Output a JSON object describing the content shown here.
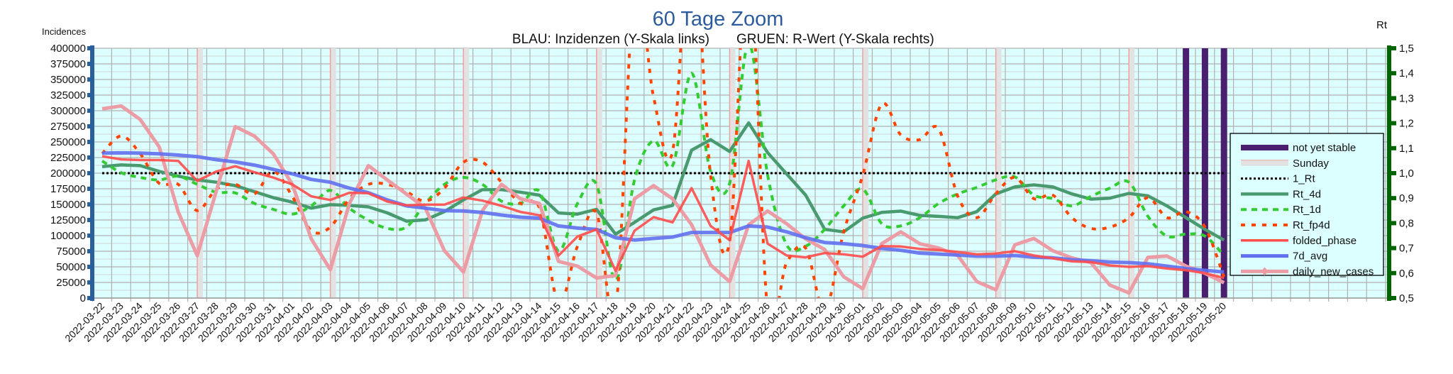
{
  "chart_data": {
    "type": "line",
    "title": "60 Tage Zoom",
    "subtitle_left": "BLAU: Inzidenzen (Y-Skala links)",
    "subtitle_right": "GRUEN: R-Wert (Y-Skala rechts)",
    "ylabel_left": "Incidences",
    "ylabel_right": "Rt",
    "ylim_left": [
      0,
      400000
    ],
    "ylim_right": [
      0.5,
      1.5
    ],
    "yticks_left": [
      "0",
      "25000",
      "50000",
      "75000",
      "100000",
      "125000",
      "150000",
      "175000",
      "200000",
      "225000",
      "250000",
      "275000",
      "300000",
      "325000",
      "350000",
      "375000",
      "400000"
    ],
    "yticks_right": [
      "0,5",
      "0,6",
      "0,7",
      "0,8",
      "0,9",
      "1,0",
      "1,1",
      "1,2",
      "1,3",
      "1,4",
      "1,5"
    ],
    "grid": true,
    "legend_position": "right",
    "x": [
      "2022-03-22",
      "2022-03-23",
      "2022-03-24",
      "2022-03-25",
      "2022-03-26",
      "2022-03-27",
      "2022-03-28",
      "2022-03-29",
      "2022-03-30",
      "2022-03-31",
      "2022-04-01",
      "2022-04-02",
      "2022-04-03",
      "2022-04-04",
      "2022-04-05",
      "2022-04-06",
      "2022-04-07",
      "2022-04-08",
      "2022-04-09",
      "2022-04-10",
      "2022-04-11",
      "2022-04-12",
      "2022-04-13",
      "2022-04-14",
      "2022-04-15",
      "2022-04-16",
      "2022-04-17",
      "2022-04-18",
      "2022-04-19",
      "2022-04-20",
      "2022-04-21",
      "2022-04-22",
      "2022-04-23",
      "2022-04-24",
      "2022-04-25",
      "2022-04-26",
      "2022-04-27",
      "2022-04-28",
      "2022-04-29",
      "2022-04-30",
      "2022-05-01",
      "2022-05-02",
      "2022-05-03",
      "2022-05-04",
      "2022-05-05",
      "2022-05-06",
      "2022-05-07",
      "2022-05-08",
      "2022-05-09",
      "2022-05-10",
      "2022-05-11",
      "2022-05-12",
      "2022-05-13",
      "2022-05-14",
      "2022-05-15",
      "2022-05-16",
      "2022-05-17",
      "2022-05-18",
      "2022-05-19",
      "2022-05-20"
    ],
    "sundays": [
      "2022-03-27",
      "2022-04-03",
      "2022-04-10",
      "2022-04-17",
      "2022-04-24",
      "2022-05-01",
      "2022-05-08",
      "2022-05-15"
    ],
    "not_yet_stable": [
      "2022-05-18",
      "2022-05-19",
      "2022-05-20"
    ],
    "series": [
      {
        "name": "not yet stable",
        "axis": "none",
        "color": "#4b1f6f",
        "style": "bar"
      },
      {
        "name": "Sunday",
        "axis": "none",
        "color": "#e2e2e2",
        "edge": "#f0a0a0",
        "style": "band"
      },
      {
        "name": "1_Rt",
        "axis": "right",
        "color": "#000000",
        "style": "dotted",
        "values": [
          1,
          1,
          1,
          1,
          1,
          1,
          1,
          1,
          1,
          1,
          1,
          1,
          1,
          1,
          1,
          1,
          1,
          1,
          1,
          1,
          1,
          1,
          1,
          1,
          1,
          1,
          1,
          1,
          1,
          1,
          1,
          1,
          1,
          1,
          1,
          1,
          1,
          1,
          1,
          1,
          1,
          1,
          1,
          1,
          1,
          1,
          1,
          1,
          1,
          1,
          1,
          1,
          1,
          1,
          1,
          1,
          1,
          1,
          1,
          1
        ]
      },
      {
        "name": "Rt_4d",
        "axis": "right",
        "color": "#4a9a70",
        "style": "solid",
        "values": [
          1.026,
          1.033,
          1.03,
          1.007,
          0.988,
          0.973,
          0.964,
          0.95,
          0.926,
          0.902,
          0.884,
          0.86,
          0.874,
          0.871,
          0.865,
          0.841,
          0.808,
          0.813,
          0.846,
          0.893,
          0.934,
          0.934,
          0.924,
          0.912,
          0.841,
          0.836,
          0.855,
          0.756,
          0.803,
          0.853,
          0.871,
          1.092,
          1.134,
          1.087,
          1.201,
          1.082,
          0.997,
          0.912,
          0.775,
          0.765,
          0.82,
          0.843,
          0.848,
          0.831,
          0.827,
          0.822,
          0.846,
          0.917,
          0.945,
          0.953,
          0.945,
          0.917,
          0.896,
          0.9,
          0.919,
          0.909,
          0.869,
          0.822,
          0.775,
          0.732
        ]
      },
      {
        "name": "Rt_1d",
        "axis": "right",
        "color": "#33cc33",
        "style": "dashed",
        "values": [
          1.049,
          1.002,
          0.983,
          0.973,
          0.988,
          0.955,
          0.924,
          0.921,
          0.879,
          0.855,
          0.836,
          0.869,
          0.931,
          0.86,
          0.812,
          0.779,
          0.784,
          0.879,
          0.955,
          0.983,
          0.955,
          0.888,
          0.879,
          0.926,
          0.689,
          0.879,
          0.955,
          0.571,
          0.973,
          1.13,
          1.03,
          1.4,
          1.007,
          0.959,
          1.52,
          0.992,
          0.713,
          0.708,
          0.775,
          0.869,
          0.936,
          0.798,
          0.789,
          0.822,
          0.879,
          0.917,
          0.943,
          0.973,
          0.985,
          0.912,
          0.898,
          0.869,
          0.907,
          0.94,
          0.964,
          0.827,
          0.748,
          0.756,
          0.748,
          0.67
        ]
      },
      {
        "name": "Rt_fp4d",
        "axis": "right",
        "color": "#ff4500",
        "style": "dashed",
        "values": [
          1.078,
          1.149,
          1.078,
          0.959,
          0.955,
          0.85,
          0.936,
          0.955,
          0.917,
          1.007,
          0.907,
          0.77,
          0.784,
          0.898,
          0.955,
          0.955,
          0.926,
          0.888,
          0.94,
          1.044,
          1.044,
          0.964,
          0.879,
          0.86,
          0.48,
          0.708,
          0.841,
          0.45,
          1.75,
          1.305,
          1.087,
          2.0,
          0.99,
          0.727,
          1.9,
          0.45,
          0.642,
          0.7,
          0.45,
          0.765,
          0.992,
          1.277,
          1.153,
          1.134,
          1.177,
          0.907,
          0.822,
          0.917,
          0.983,
          0.898,
          0.912,
          0.822,
          0.779,
          0.784,
          0.822,
          0.902,
          0.822,
          0.846,
          0.784,
          0.585
        ]
      },
      {
        "name": "folded_phase",
        "axis": "left",
        "color": "#ff4c4c",
        "style": "solid",
        "values": [
          227000,
          222000,
          221000,
          221000,
          219700,
          187500,
          202600,
          211000,
          201500,
          193000,
          182000,
          163000,
          157000,
          168600,
          168000,
          154500,
          148500,
          149600,
          149600,
          161000,
          156000,
          147700,
          138000,
          132600,
          68000,
          98500,
          110000,
          43600,
          108000,
          129500,
          121200,
          176000,
          115500,
          92800,
          219700,
          87100,
          68200,
          65200,
          72000,
          70000,
          66300,
          83300,
          82600,
          78800,
          77000,
          73900,
          70000,
          71200,
          75000,
          68200,
          63600,
          58700,
          57600,
          52300,
          50000,
          51100,
          47300,
          44700,
          39800,
          32200
        ]
      },
      {
        "name": "7d_avg",
        "axis": "left",
        "color": "#6070f0",
        "style": "solid",
        "values": [
          232000,
          232500,
          232000,
          231000,
          229000,
          226500,
          221600,
          218000,
          213000,
          206000,
          199000,
          190000,
          185600,
          176000,
          168600,
          157000,
          147700,
          144000,
          140000,
          139400,
          137000,
          133000,
          129500,
          128000,
          115500,
          112000,
          110000,
          96600,
          92900,
          95500,
          97700,
          105000,
          105000,
          105000,
          115500,
          113600,
          106000,
          96600,
          89000,
          87100,
          84100,
          79500,
          76500,
          72000,
          70500,
          68900,
          67000,
          67000,
          68200,
          65500,
          64400,
          61400,
          59800,
          57600,
          56800,
          54900,
          51100,
          47300,
          44300,
          41700
        ]
      },
      {
        "name": "daily_new_cases",
        "axis": "left",
        "color": "#eb9ca4",
        "style": "solid",
        "values": [
          303000,
          307600,
          286000,
          242000,
          138000,
          68000,
          171000,
          274600,
          259500,
          231000,
          182000,
          94700,
          45500,
          151000,
          212000,
          189000,
          166700,
          144000,
          75800,
          41700,
          140000,
          182000,
          159000,
          151500,
          58700,
          51100,
          32200,
          36000,
          159000,
          180000,
          159000,
          117400,
          53000,
          26500,
          117400,
          139400,
          119000,
          94700,
          77700,
          34100,
          15100,
          87100,
          106000,
          87100,
          80000,
          68200,
          26500,
          13300,
          85200,
          95500,
          75800,
          64400,
          56800,
          20800,
          8300,
          65200,
          67400,
          51100,
          39800,
          24600
        ]
      }
    ]
  }
}
